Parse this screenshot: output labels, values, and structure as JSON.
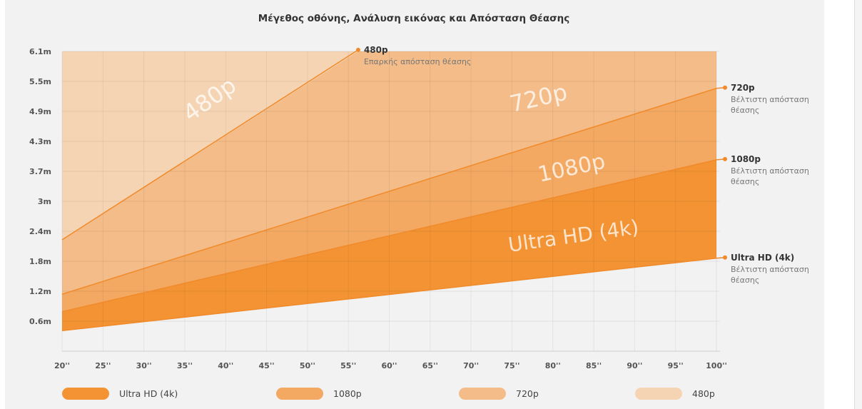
{
  "chart_data": {
    "type": "area",
    "title": "Μέγεθος οθόνης, Ανάλυση εικόνας και Απόσταση Θέασης",
    "xlabel": "",
    "ylabel": "",
    "x_ticks": [
      "20''",
      "25''",
      "30''",
      "35''",
      "40''",
      "45''",
      "50''",
      "55''",
      "60''",
      "65''",
      "70''",
      "75''",
      "80''",
      "85''",
      "90''",
      "95''",
      "100''"
    ],
    "x_range": [
      20,
      100
    ],
    "y_ticks": [
      "0.6m",
      "1.2m",
      "1.8m",
      "2.4m",
      "3m",
      "3.7m",
      "4.3m",
      "4.9m",
      "5.5m",
      "6.1m"
    ],
    "y_tick_values": [
      0.6,
      1.2,
      1.8,
      2.4,
      3.0,
      3.7,
      4.3,
      4.9,
      5.5,
      6.1
    ],
    "y_range": [
      0,
      6.1
    ],
    "grid": true,
    "legend_position": "bottom",
    "series": [
      {
        "name": "Ultra HD (4k)",
        "x": [
          20,
          100
        ],
        "y": [
          0.41,
          1.86
        ],
        "color": "#f39334",
        "end_label": "Ultra HD (4k)",
        "end_sub": [
          "Βέλτιστη απόσταση",
          "θέασης"
        ],
        "area_label": "Ultra HD (4k)"
      },
      {
        "name": "1080p",
        "x": [
          20,
          100
        ],
        "y": [
          0.79,
          3.93
        ],
        "color": "#f3a962",
        "end_label": "1080p",
        "end_sub": [
          "Βέλτιστη απόσταση",
          "θέασης"
        ],
        "area_label": "1080p"
      },
      {
        "name": "720p",
        "x": [
          20,
          100
        ],
        "y": [
          1.14,
          5.36
        ],
        "color": "#f4bc88",
        "end_label": "720p",
        "end_sub": [
          "Βέλτιστη απόσταση",
          "θέασης"
        ],
        "area_label": "720p"
      },
      {
        "name": "480p",
        "x": [
          20,
          56.2
        ],
        "y": [
          2.23,
          6.13
        ],
        "color": "#f5d4b3",
        "end_label": "480p",
        "end_sub": [
          "Επαρκής απόσταση θέασης"
        ],
        "area_label": "480p"
      }
    ],
    "line_color": "#f08a2a"
  }
}
